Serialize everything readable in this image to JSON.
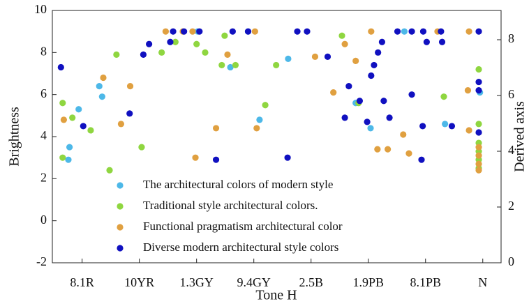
{
  "chart_data": {
    "type": "scatter",
    "xlabel": "Tone H",
    "ylabel": "Brightness",
    "y2label": "Derived axis",
    "xlim": [
      -0.52,
      7.32
    ],
    "xticks": [
      {
        "value": 0,
        "label": "8.1R"
      },
      {
        "value": 1,
        "label": "10YR"
      },
      {
        "value": 2,
        "label": "1.3GY"
      },
      {
        "value": 3,
        "label": "9.4GY"
      },
      {
        "value": 4,
        "label": "2.5B"
      },
      {
        "value": 5,
        "label": "1.9PB"
      },
      {
        "value": 6,
        "label": "8.1PB"
      },
      {
        "value": 7,
        "label": "N"
      }
    ],
    "ylim": [
      -2,
      10
    ],
    "yticks": [
      -2,
      0,
      2,
      4,
      6,
      8,
      10
    ],
    "y2lim": [
      0,
      9.05
    ],
    "y2ticks": [
      0,
      2,
      4,
      6,
      8
    ],
    "legend": "lower center",
    "series": [
      {
        "name": "The architectural colors of modern style",
        "color": "#4db8e8",
        "x": [
          -0.24,
          -0.22,
          -0.06,
          0.3,
          0.35,
          2.59,
          3.1,
          3.6,
          4.78,
          5.04,
          5.63,
          6.34,
          6.95,
          2.02,
          2.9
        ],
        "values": [
          2.9,
          3.5,
          5.3,
          6.4,
          5.9,
          7.3,
          4.8,
          7.7,
          5.6,
          4.4,
          9.0,
          4.6,
          6.1,
          9.0,
          9.0
        ]
      },
      {
        "name": "Traditional style architectural colors.",
        "color": "#8fd640",
        "x": [
          -0.34,
          -0.34,
          -0.17,
          0.15,
          0.48,
          0.6,
          1.04,
          1.39,
          1.63,
          2.0,
          2.15,
          2.44,
          2.49,
          2.68,
          3.2,
          3.39,
          4.54,
          4.83,
          6.32,
          6.93,
          6.93,
          6.93,
          6.93,
          6.93,
          6.93
        ],
        "values": [
          5.6,
          3.0,
          4.9,
          4.3,
          2.4,
          7.9,
          3.5,
          8.0,
          8.5,
          8.4,
          8.0,
          7.4,
          8.8,
          7.4,
          5.5,
          7.4,
          8.8,
          5.6,
          5.9,
          7.2,
          4.6,
          3.7,
          3.3,
          2.9,
          2.5
        ]
      },
      {
        "name": "Functional pragmatism architectural color",
        "color": "#e0a040",
        "x": [
          -0.32,
          0.37,
          0.68,
          0.84,
          1.46,
          1.76,
          1.93,
          1.98,
          2.34,
          2.54,
          3.05,
          3.02,
          4.07,
          4.39,
          4.59,
          4.78,
          5.05,
          5.16,
          5.34,
          5.61,
          5.71,
          6.21,
          6.76,
          6.74,
          6.76,
          6.93,
          6.93,
          6.93,
          6.93
        ],
        "values": [
          4.8,
          6.8,
          4.6,
          6.4,
          9.0,
          9.0,
          9.0,
          3.0,
          4.4,
          7.9,
          4.4,
          9.0,
          7.8,
          6.1,
          8.4,
          7.6,
          9.0,
          3.4,
          3.4,
          4.1,
          3.2,
          9.0,
          4.3,
          6.2,
          9.0,
          3.5,
          3.1,
          2.7,
          2.4
        ]
      },
      {
        "name": "Diverse modern architectural style colors",
        "color": "#1010c0",
        "x": [
          -0.37,
          0.02,
          0.83,
          1.07,
          1.17,
          1.54,
          1.59,
          1.78,
          2.05,
          2.34,
          2.63,
          2.9,
          3.59,
          3.76,
          3.93,
          4.29,
          4.59,
          4.66,
          4.85,
          4.98,
          5.05,
          5.1,
          5.17,
          5.24,
          5.27,
          5.37,
          5.51,
          5.76,
          5.76,
          5.93,
          5.95,
          5.96,
          6.02,
          6.27,
          6.29,
          6.46,
          6.93,
          6.93,
          6.93,
          6.93
        ],
        "values": [
          7.3,
          4.5,
          5.1,
          7.9,
          8.4,
          8.5,
          9.0,
          9.0,
          9.0,
          2.9,
          9.0,
          9.0,
          3.0,
          9.0,
          9.0,
          7.8,
          4.9,
          6.4,
          5.7,
          4.7,
          6.9,
          7.4,
          8.0,
          8.5,
          5.7,
          4.9,
          9.0,
          6.0,
          9.0,
          2.9,
          4.5,
          9.0,
          8.5,
          9.0,
          8.5,
          4.5,
          9.0,
          6.6,
          6.2,
          4.2
        ]
      }
    ]
  }
}
